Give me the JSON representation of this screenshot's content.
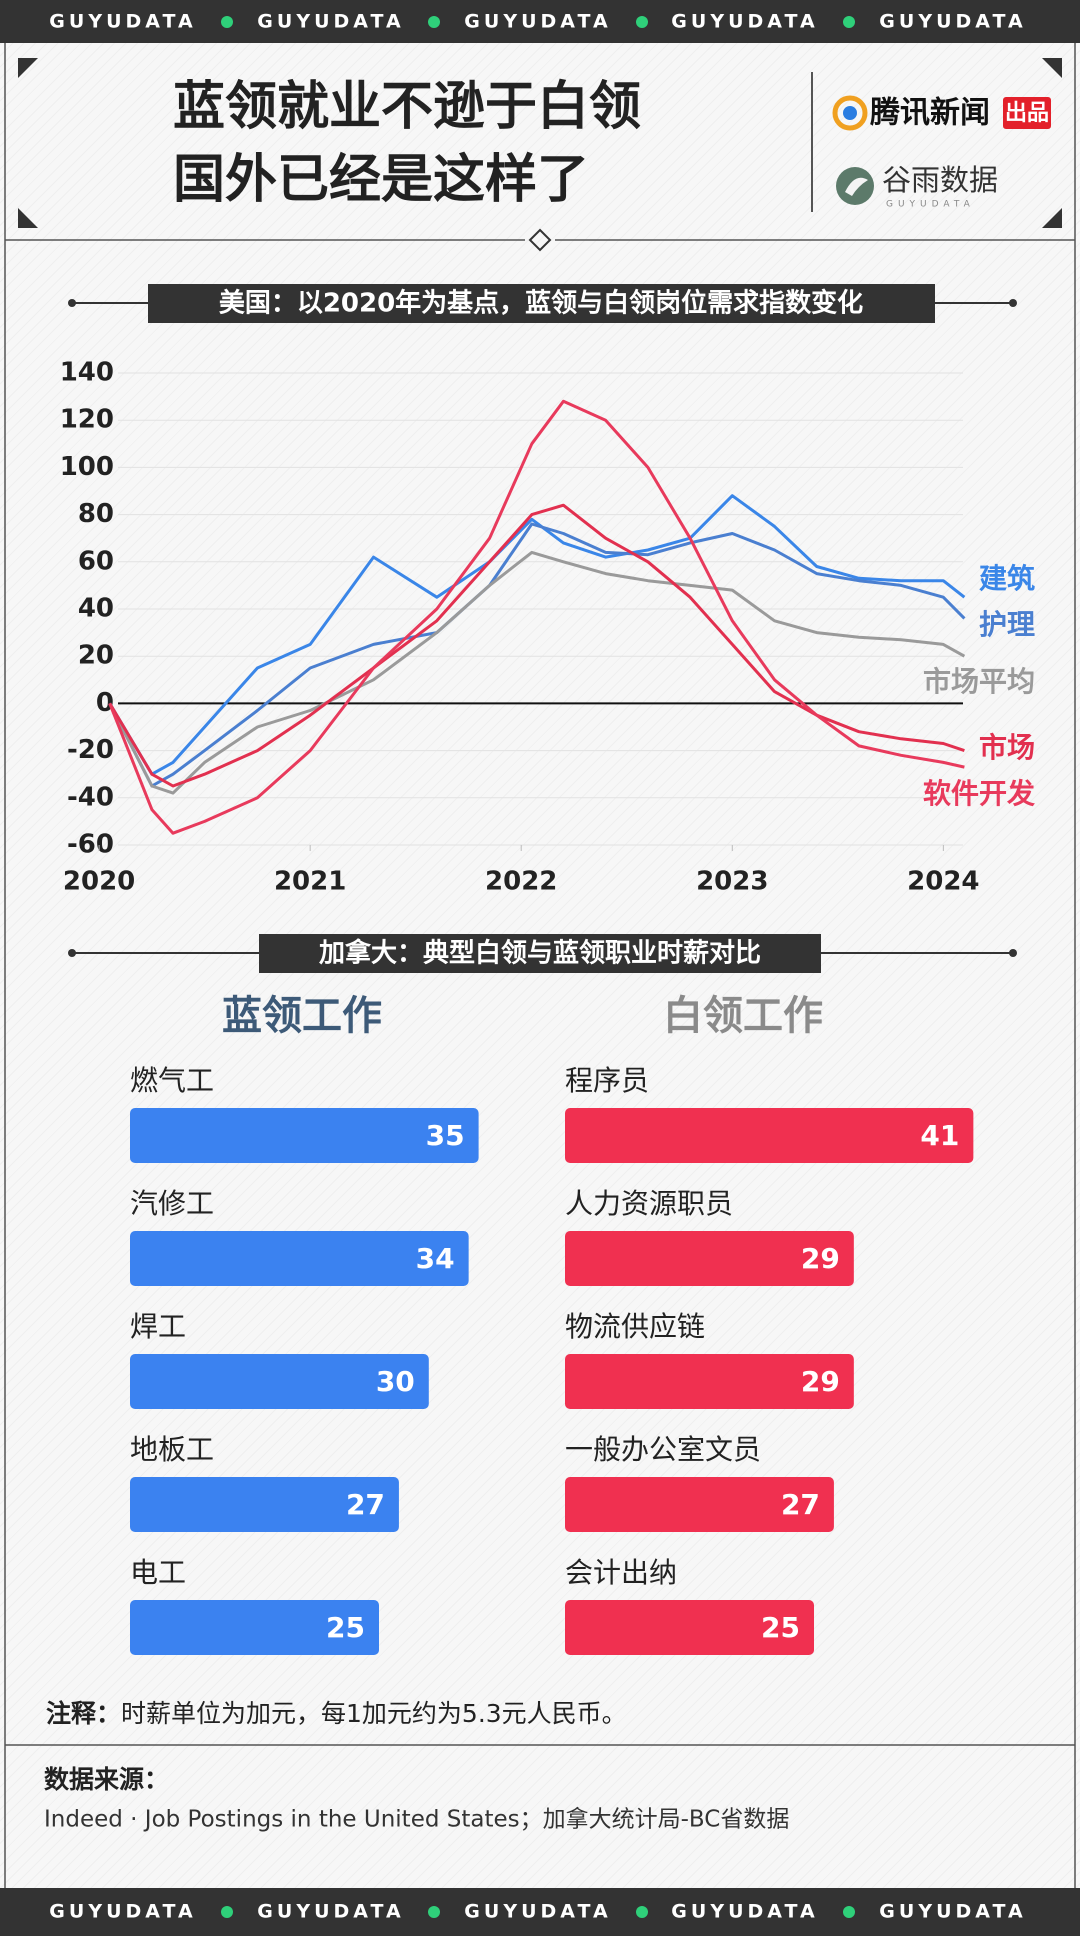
{
  "banner": {
    "top": [
      "GUYUDATA",
      "GUYUDATA",
      "GUYUDATA",
      "GUYUDATA",
      "GUYUDATA"
    ],
    "bottom": [
      "GUYUDATA",
      "GUYUDATA",
      "GUYUDATA",
      "GUYUDATA",
      "GUYUDATA"
    ]
  },
  "header": {
    "title_lines": [
      "蓝领就业不逊于白领",
      "国外已经是这样了"
    ],
    "publisher": "腾讯新闻",
    "publisher_badge": "出品",
    "brand": "谷雨数据",
    "brand_sub": "GUYUDATA"
  },
  "chart_data": [
    {
      "type": "line",
      "title": "美国：以2020年为基点，蓝领与白领岗位需求指数变化",
      "x": [
        2020.05,
        2020.25,
        2020.35,
        2020.5,
        2020.75,
        2021.0,
        2021.3,
        2021.6,
        2021.85,
        2022.05,
        2022.2,
        2022.4,
        2022.6,
        2022.8,
        2023.0,
        2023.2,
        2023.4,
        2023.6,
        2023.8,
        2024.0,
        2024.1
      ],
      "xlim": [
        2019.9,
        2024.15
      ],
      "xticks": [
        2020,
        2021,
        2022,
        2023,
        2024
      ],
      "ylim": [
        -60,
        140
      ],
      "yticks": [
        -60,
        -40,
        -20,
        0,
        20,
        40,
        60,
        80,
        100,
        120,
        140
      ],
      "grid": true,
      "series": [
        {
          "name": "建筑",
          "color": "#3a86e8",
          "values": [
            0,
            -30,
            -25,
            -10,
            15,
            25,
            62,
            45,
            60,
            78,
            68,
            62,
            65,
            70,
            88,
            75,
            58,
            53,
            52,
            52,
            45
          ]
        },
        {
          "name": "护理",
          "color": "#4a7fd0",
          "values": [
            0,
            -35,
            -30,
            -20,
            -3,
            15,
            25,
            30,
            50,
            76,
            72,
            64,
            63,
            68,
            72,
            65,
            55,
            52,
            50,
            45,
            36
          ]
        },
        {
          "name": "市场平均",
          "color": "#9a9a9a",
          "values": [
            0,
            -35,
            -38,
            -25,
            -10,
            -3,
            10,
            30,
            50,
            64,
            60,
            55,
            52,
            50,
            48,
            35,
            30,
            28,
            27,
            25,
            20
          ]
        },
        {
          "name": "市场",
          "color": "#e2304f",
          "values": [
            0,
            -30,
            -35,
            -30,
            -20,
            -5,
            15,
            35,
            60,
            80,
            84,
            70,
            60,
            45,
            25,
            5,
            -5,
            -12,
            -15,
            -17,
            -20
          ]
        },
        {
          "name": "软件开发",
          "color": "#e83a5c",
          "values": [
            0,
            -45,
            -55,
            -50,
            -40,
            -20,
            15,
            40,
            70,
            110,
            128,
            120,
            100,
            70,
            35,
            10,
            -5,
            -18,
            -22,
            -25,
            -27
          ]
        }
      ]
    },
    {
      "type": "hbar",
      "title": "蓝领工作",
      "title_color": "#3d5a78",
      "categories": [
        "燃气工",
        "汽修工",
        "焊工",
        "地板工",
        "电工"
      ],
      "values": [
        35,
        34,
        30,
        27,
        25
      ],
      "color": "#3b82f0"
    },
    {
      "type": "hbar",
      "title": "白领工作",
      "title_color": "#8a8a8a",
      "categories": [
        "程序员",
        "人力资源职员",
        "物流供应链",
        "一般办公室文员",
        "会计出纳"
      ],
      "values": [
        41,
        29,
        29,
        27,
        25
      ],
      "color": "#f03050"
    }
  ],
  "canada_section": {
    "title": "加拿大：典型白领与蓝领职业时薪对比"
  },
  "note": {
    "label": "注释：",
    "text": "时薪单位为加元，每1加元约为5.3元人民币。"
  },
  "source": {
    "label": "数据来源：",
    "text": "Indeed · Job Postings in the United States；加拿大统计局-BC省数据"
  }
}
